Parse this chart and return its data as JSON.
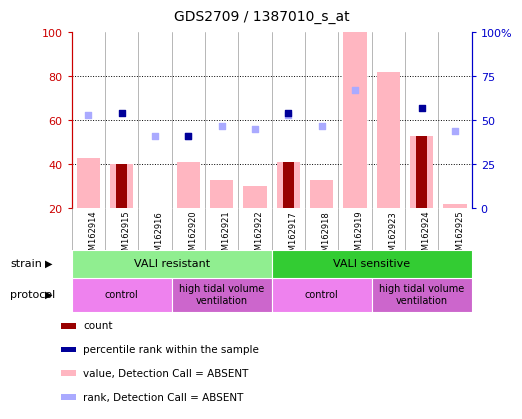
{
  "title": "GDS2709 / 1387010_s_at",
  "samples": [
    "GSM162914",
    "GSM162915",
    "GSM162916",
    "GSM162920",
    "GSM162921",
    "GSM162922",
    "GSM162917",
    "GSM162918",
    "GSM162919",
    "GSM162923",
    "GSM162924",
    "GSM162925"
  ],
  "value_bars": [
    43,
    40,
    20,
    41,
    33,
    30,
    41,
    33,
    100,
    82,
    53,
    22
  ],
  "count_bars": [
    0,
    40,
    0,
    0,
    0,
    0,
    41,
    0,
    0,
    0,
    53,
    0
  ],
  "rank_light": [
    53,
    0,
    41,
    41,
    47,
    45,
    53,
    47,
    67,
    0,
    0,
    44
  ],
  "rank_dark": [
    0,
    54,
    0,
    41,
    0,
    0,
    54,
    0,
    0,
    0,
    57,
    0
  ],
  "ylim_left": [
    20,
    100
  ],
  "ylim_right": [
    0,
    100
  ],
  "yticks_left": [
    20,
    40,
    60,
    80,
    100
  ],
  "yticks_right_vals": [
    0,
    25,
    50,
    75,
    100
  ],
  "hlines": [
    40,
    60,
    80
  ],
  "strain_groups": [
    {
      "label": "VALI resistant",
      "start": 0,
      "end": 6,
      "color": "#90EE90"
    },
    {
      "label": "VALI sensitive",
      "start": 6,
      "end": 12,
      "color": "#33CC33"
    }
  ],
  "protocol_groups": [
    {
      "label": "control",
      "start": 0,
      "end": 3,
      "color": "#EE82EE"
    },
    {
      "label": "high tidal volume\nventilation",
      "start": 3,
      "end": 6,
      "color": "#CC66CC"
    },
    {
      "label": "control",
      "start": 6,
      "end": 9,
      "color": "#EE82EE"
    },
    {
      "label": "high tidal volume\nventilation",
      "start": 9,
      "end": 12,
      "color": "#CC66CC"
    }
  ],
  "bar_color_value": "#FFB6C1",
  "bar_color_count": "#990000",
  "dot_color_light": "#AAAAFF",
  "dot_color_dark": "#000099",
  "left_axis_color": "#CC0000",
  "right_axis_color": "#0000CC",
  "tick_bg_color": "#C0C0C0",
  "legend_items": [
    {
      "color": "#990000",
      "label": "count"
    },
    {
      "color": "#000099",
      "label": "percentile rank within the sample"
    },
    {
      "color": "#FFB6C1",
      "label": "value, Detection Call = ABSENT"
    },
    {
      "color": "#AAAAFF",
      "label": "rank, Detection Call = ABSENT"
    }
  ]
}
